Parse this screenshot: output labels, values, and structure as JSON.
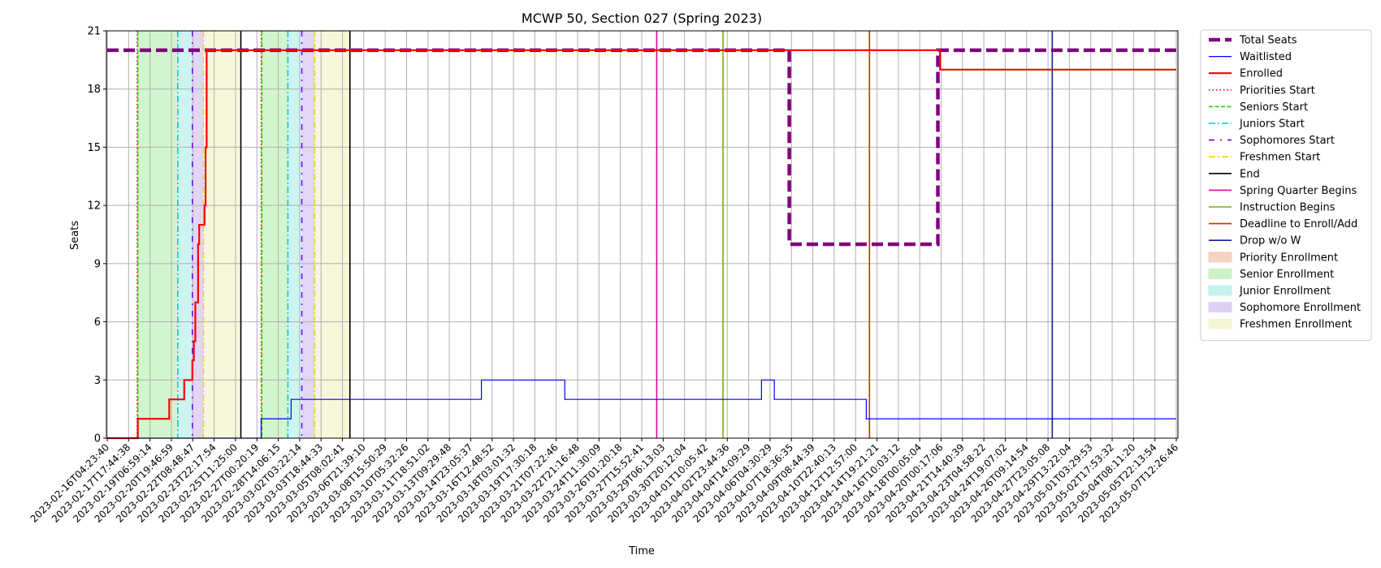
{
  "chart_data": {
    "type": "line",
    "title": "MCWP 50, Section 027 (Spring 2023)",
    "xlabel": "Time",
    "ylabel": "Seats",
    "ylim": [
      0,
      21
    ],
    "yticks": [
      0,
      3,
      6,
      9,
      12,
      15,
      18,
      21
    ],
    "grid": true,
    "legend_position": "outside-right-top",
    "xtick_labels": [
      "2023-02-16T04:23:40",
      "2023-02-17T17:44:38",
      "2023-02-19T06:59:14",
      "2023-02-20T19:46:59",
      "2023-02-22T08:48:47",
      "2023-02-23T22:17:54",
      "2023-02-25T11:25:00",
      "2023-02-27T00:20:19",
      "2023-02-28T14:06:15",
      "2023-03-02T03:22:14",
      "2023-03-03T18:44:33",
      "2023-03-05T08:02:41",
      "2023-03-06T21:39:10",
      "2023-03-08T15:50:29",
      "2023-03-10T05:32:26",
      "2023-03-11T18:51:02",
      "2023-03-13T09:29:48",
      "2023-03-14T23:05:37",
      "2023-03-16T12:48:52",
      "2023-03-18T03:01:32",
      "2023-03-19T17:30:18",
      "2023-03-21T07:22:46",
      "2023-03-22T21:16:48",
      "2023-03-24T11:30:09",
      "2023-03-26T01:20:18",
      "2023-03-27T15:52:41",
      "2023-03-29T06:13:03",
      "2023-03-30T20:12:04",
      "2023-04-01T10:05:42",
      "2023-04-02T23:44:36",
      "2023-04-04T14:09:29",
      "2023-04-06T04:30:29",
      "2023-04-07T18:36:35",
      "2023-04-09T08:44:39",
      "2023-04-10T22:40:13",
      "2023-04-12T12:57:00",
      "2023-04-14T19:21:21",
      "2023-04-16T10:03:12",
      "2023-04-18T00:05:04",
      "2023-04-20T00:17:06",
      "2023-04-21T14:40:39",
      "2023-04-23T04:58:22",
      "2023-04-24T19:07:02",
      "2023-04-26T09:14:54",
      "2023-04-27T23:05:08",
      "2023-04-29T13:22:04",
      "2023-05-01T03:29:53",
      "2023-05-02T17:53:32",
      "2023-05-04T08:11:20",
      "2023-05-05T22:13:54",
      "2023-05-07T12:26:46"
    ],
    "series": [
      {
        "name": "Total Seats",
        "color": "#800080",
        "style": "dashed-thick",
        "points": [
          [
            0,
            20
          ],
          [
            31.9,
            20
          ],
          [
            31.9,
            10
          ],
          [
            38.85,
            10
          ],
          [
            38.85,
            20
          ],
          [
            50,
            20
          ]
        ]
      },
      {
        "name": "Waitlisted",
        "color": "#0000ff",
        "style": "solid-thin",
        "points": [
          [
            0,
            0
          ],
          [
            7.2,
            0
          ],
          [
            7.2,
            1
          ],
          [
            8.6,
            1
          ],
          [
            8.6,
            2
          ],
          [
            17.5,
            2
          ],
          [
            17.5,
            3
          ],
          [
            21.4,
            3
          ],
          [
            21.4,
            2
          ],
          [
            30.6,
            2
          ],
          [
            30.6,
            3
          ],
          [
            31.2,
            3
          ],
          [
            31.2,
            2
          ],
          [
            35.5,
            2
          ],
          [
            35.5,
            1
          ],
          [
            50,
            1
          ]
        ]
      },
      {
        "name": "Enrolled",
        "color": "#ff0000",
        "style": "solid-thick",
        "points": [
          [
            0,
            0
          ],
          [
            1.43,
            0
          ],
          [
            1.43,
            1
          ],
          [
            2.9,
            1
          ],
          [
            2.9,
            2
          ],
          [
            3.6,
            2
          ],
          [
            3.6,
            3
          ],
          [
            3.98,
            3
          ],
          [
            3.98,
            4
          ],
          [
            4.05,
            4
          ],
          [
            4.05,
            5
          ],
          [
            4.12,
            5
          ],
          [
            4.12,
            7
          ],
          [
            4.25,
            7
          ],
          [
            4.25,
            10
          ],
          [
            4.3,
            10
          ],
          [
            4.3,
            11
          ],
          [
            4.55,
            11
          ],
          [
            4.55,
            12
          ],
          [
            4.6,
            12
          ],
          [
            4.6,
            15
          ],
          [
            4.65,
            15
          ],
          [
            4.65,
            20
          ],
          [
            38.95,
            20
          ],
          [
            38.95,
            19
          ],
          [
            50,
            19
          ]
        ]
      }
    ],
    "vertical_markers": [
      {
        "name": "Priorities Start",
        "color": "#ff0000",
        "style": "dotted",
        "x": [
          1.4,
          7.2
        ]
      },
      {
        "name": "Seniors Start",
        "color": "#22cc00",
        "style": "dashed",
        "x": [
          1.43,
          7.23
        ]
      },
      {
        "name": "Juniors Start",
        "color": "#00c8c8",
        "style": "dashdot",
        "x": [
          3.3,
          8.45
        ]
      },
      {
        "name": "Sophomores Start",
        "color": "#6a00ff",
        "style": "dashdot-sparse",
        "x": [
          3.98,
          9.1
        ]
      },
      {
        "name": "Freshmen Start",
        "color": "#e6d800",
        "style": "dashdot",
        "x": [
          4.5,
          9.7
        ]
      },
      {
        "name": "End",
        "color": "#000000",
        "style": "solid",
        "x": [
          6.25,
          11.35
        ]
      },
      {
        "name": "Spring Quarter Begins",
        "color": "#e000a0",
        "style": "solid",
        "x": [
          25.7
        ]
      },
      {
        "name": "Instruction Begins",
        "color": "#7fa800",
        "style": "solid",
        "x": [
          28.8
        ]
      },
      {
        "name": "Deadline to Enroll/Add",
        "color": "#d62800",
        "style": "solid",
        "x": [
          35.65
        ]
      },
      {
        "name": "Drop w/o W",
        "color": "#1a1a9e",
        "style": "solid",
        "x": [
          44.2
        ]
      }
    ],
    "shaded_periods": [
      {
        "name": "Priority Enrollment",
        "color": "#f6c9b8",
        "ranges": [
          [
            1.4,
            1.43
          ],
          [
            7.2,
            7.23
          ]
        ]
      },
      {
        "name": "Senior Enrollment",
        "color": "#c3f0bd",
        "ranges": [
          [
            1.43,
            3.3
          ],
          [
            7.23,
            8.45
          ]
        ]
      },
      {
        "name": "Junior Enrollment",
        "color": "#bdf0ee",
        "ranges": [
          [
            3.3,
            3.98
          ],
          [
            8.45,
            9.1
          ]
        ]
      },
      {
        "name": "Sophomore Enrollment",
        "color": "#d9c7f3",
        "ranges": [
          [
            3.98,
            4.5
          ],
          [
            9.1,
            9.7
          ]
        ]
      },
      {
        "name": "Freshmen Enrollment",
        "color": "#f4f4cc",
        "ranges": [
          [
            4.5,
            6.25
          ],
          [
            9.7,
            11.35
          ]
        ]
      }
    ],
    "legend_entries": [
      "Total Seats",
      "Waitlisted",
      "Enrolled",
      "Priorities Start",
      "Seniors Start",
      "Juniors Start",
      "Sophomores Start",
      "Freshmen Start",
      "End",
      "Spring Quarter Begins",
      "Instruction Begins",
      "Deadline to Enroll/Add",
      "Drop w/o W",
      "Priority Enrollment",
      "Senior Enrollment",
      "Junior Enrollment",
      "Sophomore Enrollment",
      "Freshmen Enrollment"
    ]
  }
}
